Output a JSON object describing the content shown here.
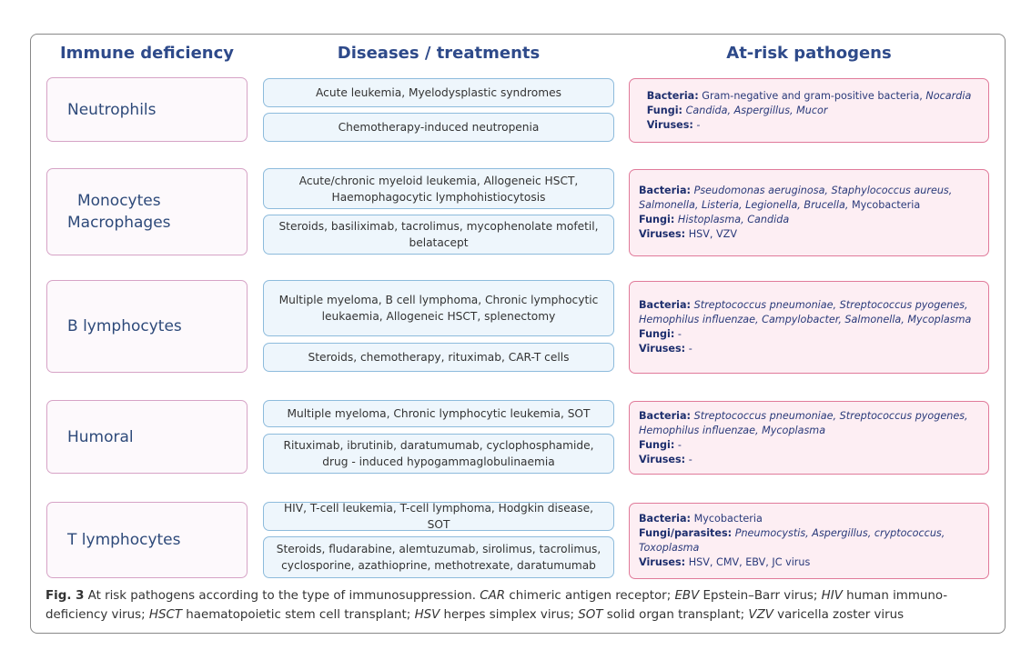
{
  "headers": [
    "Immune deficiency",
    "Diseases / treatments",
    "At-risk pathogens"
  ],
  "rows": [
    {
      "deficiency": [
        "Neutrophils"
      ],
      "diseases": [
        "Acute leukemia, Myelodysplastic syndromes",
        "Chemotherapy-induced neutropenia"
      ],
      "pathogens": [
        {
          "label": "Bacteria:",
          "parts": [
            {
              "text": "Gram-negative and gram-positive bacteria, "
            },
            {
              "text": "Nocardia",
              "italic": true
            }
          ]
        },
        {
          "label": "Fungi:",
          "parts": [
            {
              "text": "Candida, Aspergillus, Mucor",
              "italic": true
            }
          ]
        },
        {
          "label": "Viruses:",
          "parts": [
            {
              "text": "-",
              "italic": true
            }
          ]
        }
      ]
    },
    {
      "deficiency": [
        "Monocytes",
        "Macrophages"
      ],
      "diseases": [
        "Acute/chronic myeloid leukemia, Allogeneic HSCT, Haemophagocytic lymphohistiocytosis",
        "Steroids, basiliximab, tacrolimus, mycophenolate mofetil, belatacept"
      ],
      "pathogens": [
        {
          "label": "Bacteria:",
          "parts": [
            {
              "text": "Pseudomonas aeruginosa, Staphylococcus aureus, Salmonella, Listeria, Legionella, Brucella, ",
              "italic": true
            },
            {
              "text": "Mycobacteria"
            }
          ]
        },
        {
          "label": "Fungi:",
          "parts": [
            {
              "text": "Histoplasma, Candida",
              "italic": true
            }
          ]
        },
        {
          "label": "Viruses:",
          "parts": [
            {
              "text": "HSV, VZV"
            }
          ]
        }
      ]
    },
    {
      "deficiency": [
        "B lymphocytes"
      ],
      "diseases": [
        "Multiple myeloma, B cell lymphoma, Chronic lymphocytic leukaemia, Allogeneic HSCT, splenectomy",
        "Steroids, chemotherapy, rituximab, CAR-T cells"
      ],
      "pathogens": [
        {
          "label": "Bacteria:",
          "parts": [
            {
              "text": "Streptococcus pneumoniae, Streptococcus pyogenes, Hemophilus influenzae, Campylobacter, Salmonella, Mycoplasma",
              "italic": true
            }
          ]
        },
        {
          "label": "Fungi:",
          "parts": [
            {
              "text": "-"
            }
          ]
        },
        {
          "label": "Viruses:",
          "parts": [
            {
              "text": "-"
            }
          ]
        }
      ]
    },
    {
      "deficiency": [
        "Humoral"
      ],
      "diseases": [
        "Multiple myeloma, Chronic lymphocytic leukemia, SOT",
        "Rituximab, ibrutinib, daratumumab, cyclophosphamide, drug - induced hypogammaglobulinaemia"
      ],
      "pathogens": [
        {
          "label": "Bacteria:",
          "parts": [
            {
              "text": "Streptococcus pneumoniae, Streptococcus pyogenes, Hemophilus influenzae, Mycoplasma",
              "italic": true
            }
          ]
        },
        {
          "label": "Fungi:",
          "parts": [
            {
              "text": "-"
            }
          ]
        },
        {
          "label": "Viruses:",
          "parts": [
            {
              "text": "-"
            }
          ]
        }
      ]
    },
    {
      "deficiency": [
        "T lymphocytes"
      ],
      "diseases": [
        "HIV, T-cell leukemia, T-cell lymphoma, Hodgkin disease, SOT",
        "Steroids, fludarabine, alemtuzumab, sirolimus, tacrolimus, cyclosporine, azathioprine, methotrexate, daratumumab"
      ],
      "pathogens": [
        {
          "label": "Bacteria:",
          "parts": [
            {
              "text": "Mycobacteria"
            }
          ]
        },
        {
          "label": "Fungi/parasites:",
          "parts": [
            {
              "text": "Pneumocystis, Aspergillus, cryptococcus, Toxoplasma",
              "italic": true
            }
          ]
        },
        {
          "label": "Viruses:",
          "parts": [
            {
              "text": "HSV, CMV, EBV, JC virus"
            }
          ]
        }
      ]
    }
  ],
  "caption": [
    {
      "text": "Fig. 3",
      "bold": true
    },
    {
      "text": " At risk pathogens according to the type of immunosuppression. "
    },
    {
      "text": "CAR",
      "italic": true
    },
    {
      "text": " chimeric antigen receptor; "
    },
    {
      "text": "EBV",
      "italic": true
    },
    {
      "text": " Epstein–Barr virus; "
    },
    {
      "text": "HIV",
      "italic": true
    },
    {
      "text": " human immuno-deficiency virus; "
    },
    {
      "text": "HSCT",
      "italic": true
    },
    {
      "text": " haematopoietic stem cell transplant; "
    },
    {
      "text": "HSV",
      "italic": true
    },
    {
      "text": " herpes simplex virus; "
    },
    {
      "text": "SOT",
      "italic": true
    },
    {
      "text": " solid organ transplant; "
    },
    {
      "text": "VZV",
      "italic": true
    },
    {
      "text": " varicella zoster virus"
    }
  ]
}
